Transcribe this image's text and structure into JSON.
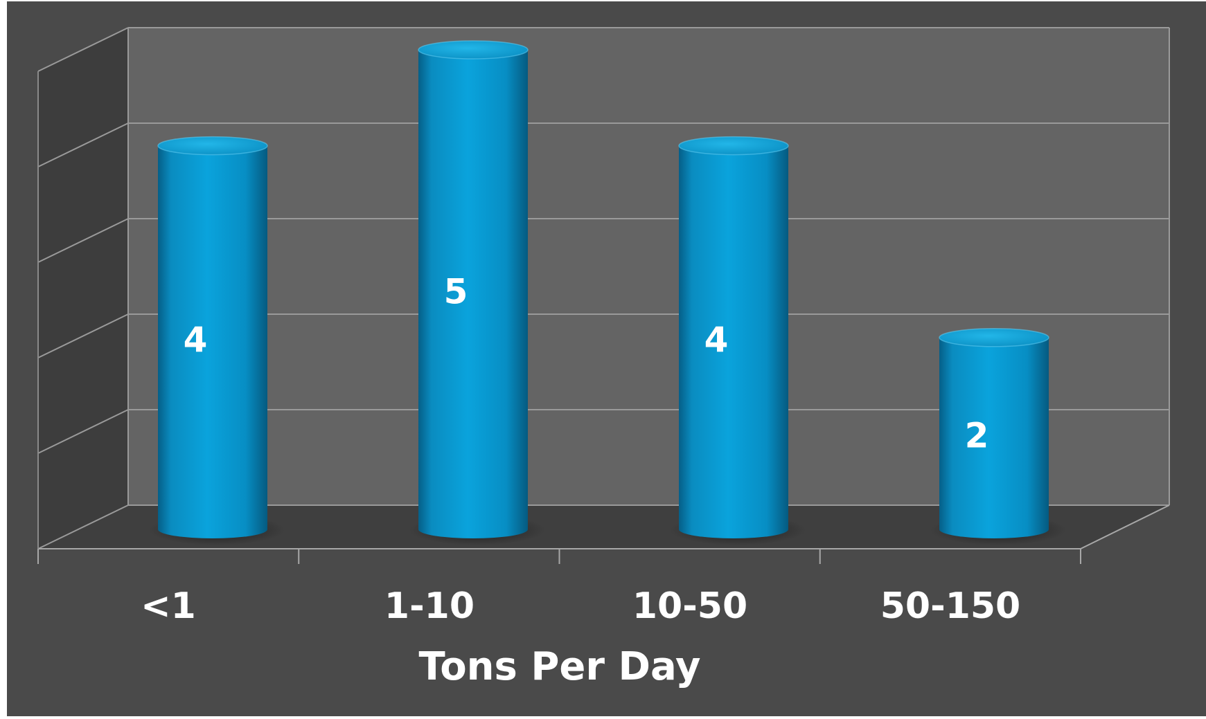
{
  "chart_data": {
    "type": "bar",
    "style": "3d-cylinder",
    "categories": [
      "<1",
      "1-10",
      "10-50",
      "50-150"
    ],
    "values": [
      4,
      5,
      4,
      2
    ],
    "data_labels": [
      "4",
      "5",
      "4",
      "2"
    ],
    "xlabel": "Tons Per Day",
    "ylabel": "",
    "title": "",
    "ylim": [
      0,
      5
    ],
    "grid": true,
    "legend": "none",
    "colors": {
      "background": "#4a4a4a",
      "back_wall": "#646464",
      "side_wall": "#3d3d3d",
      "floor": "#3f3f3f",
      "gridline": "#9a9a9a",
      "bar": "#0a9fd6",
      "bar_dark": "#04608a",
      "bar_top": "#11a7dc",
      "text": "#ffffff"
    }
  }
}
